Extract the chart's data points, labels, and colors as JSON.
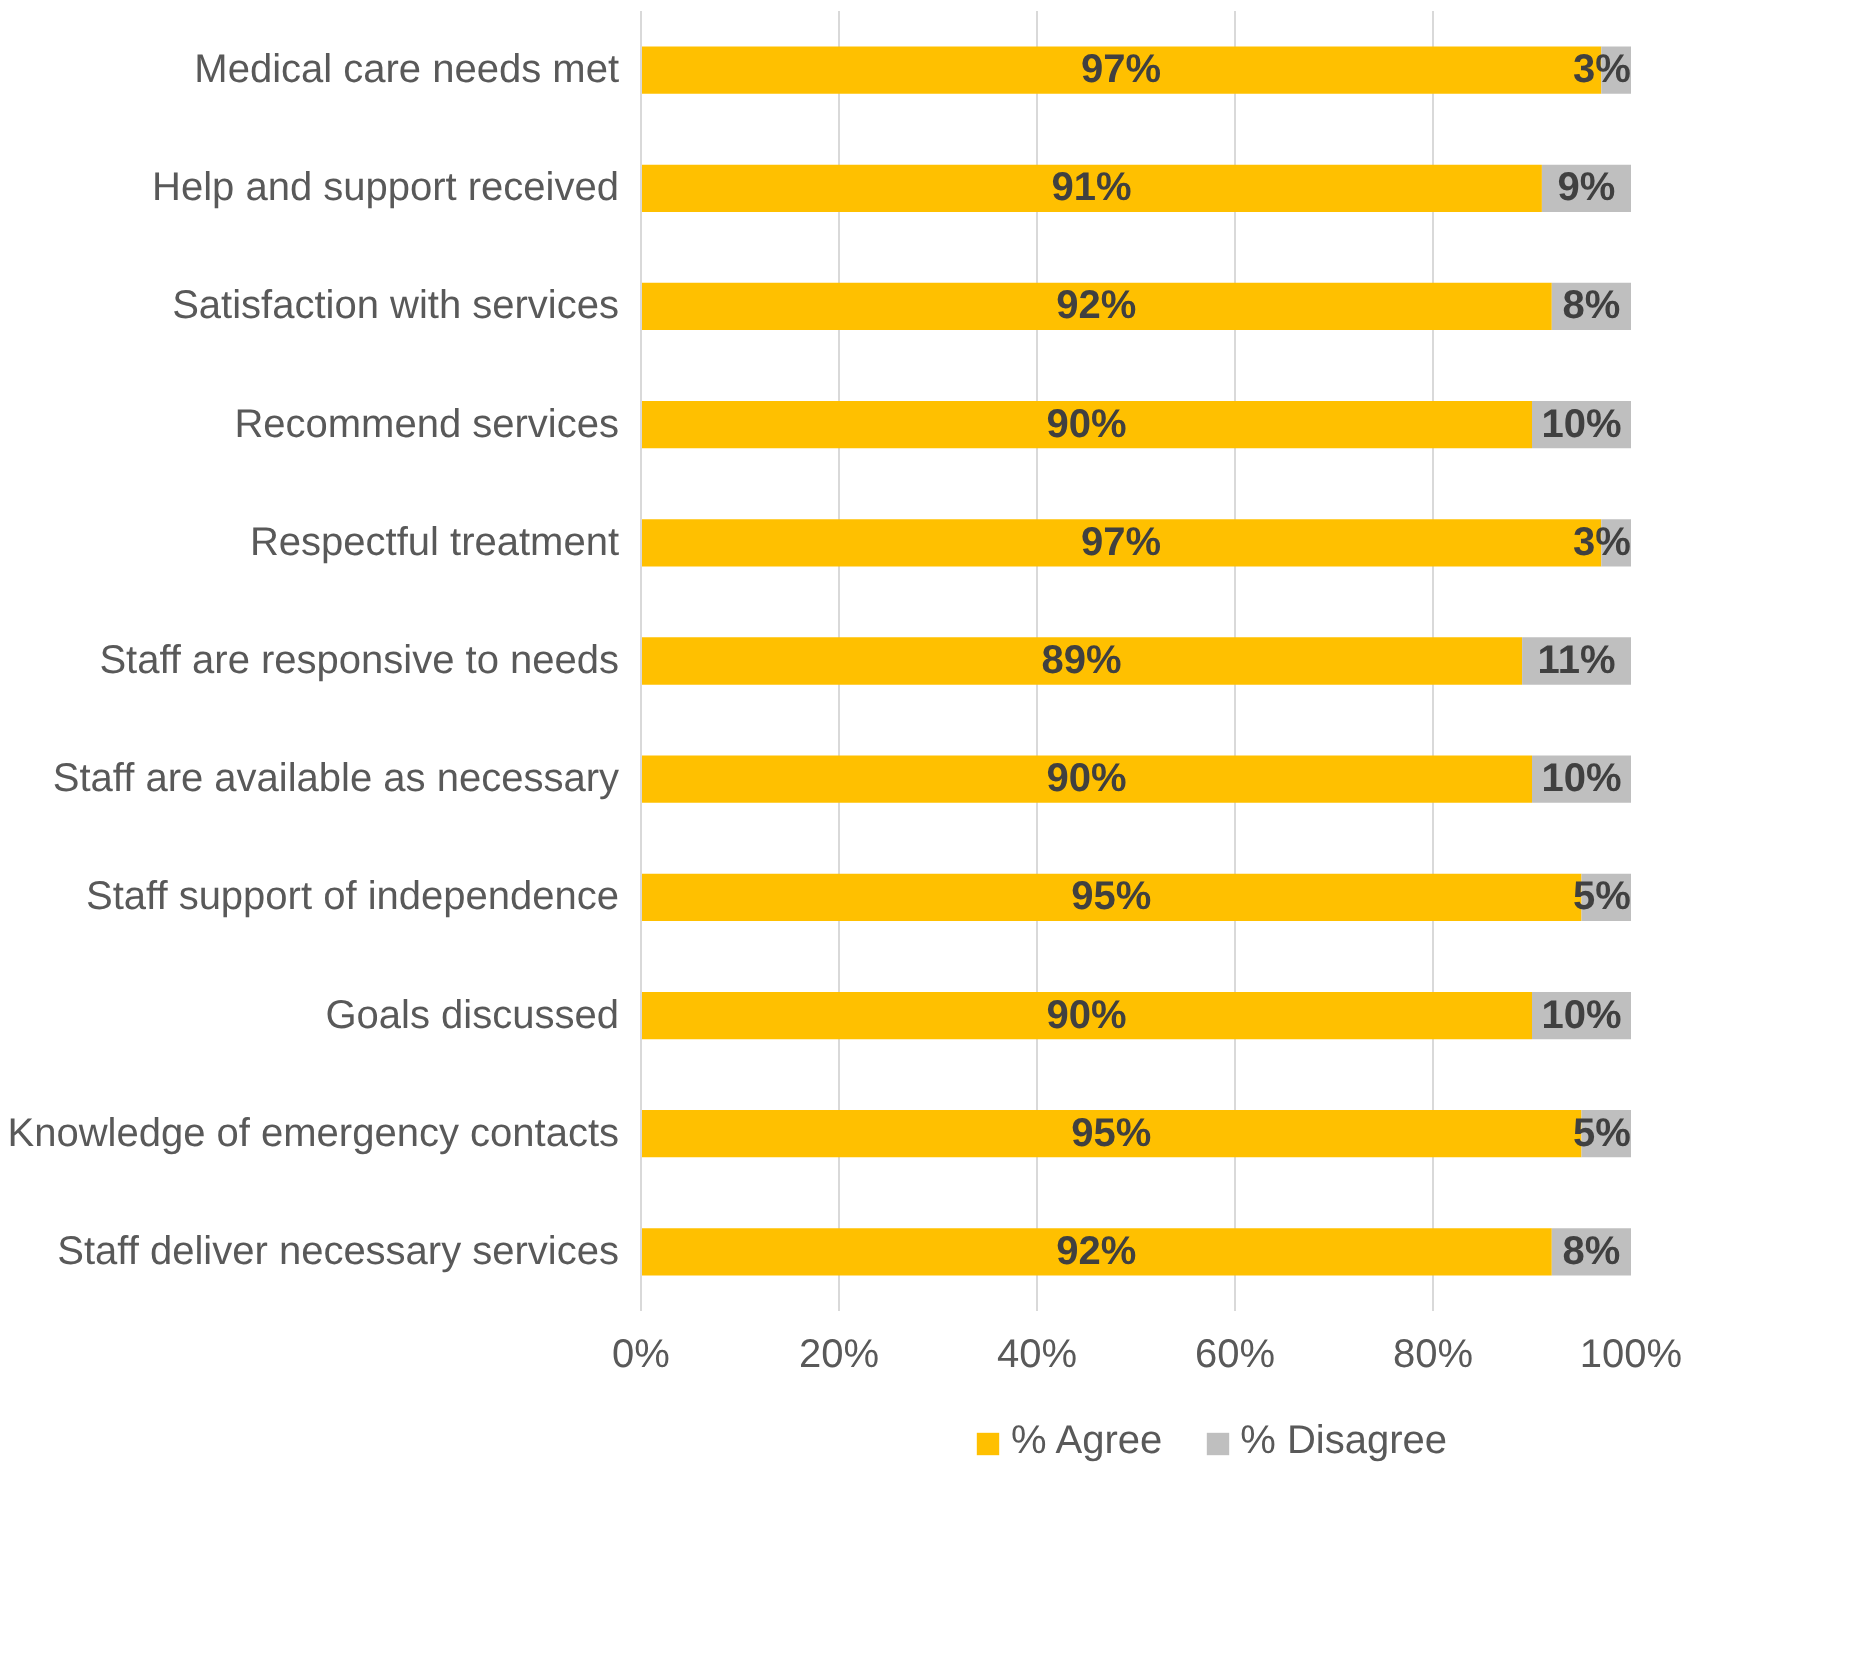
{
  "chart_data": {
    "type": "bar",
    "orientation": "horizontal",
    "stacked": true,
    "categories": [
      "Medical care needs met",
      "Help and support received",
      "Satisfaction with services",
      "Recommend services",
      "Respectful treatment",
      "Staff are responsive to needs",
      "Staff are available as necessary",
      "Staff support of independence",
      "Goals discussed",
      "Knowledge of emergency contacts",
      "Staff deliver necessary services"
    ],
    "series": [
      {
        "name": "% Agree",
        "color": "#ffc000",
        "values": [
          97,
          91,
          92,
          90,
          97,
          89,
          90,
          95,
          90,
          95,
          92
        ],
        "value_labels": [
          "97%",
          "91%",
          "92%",
          "90%",
          "97%",
          "89%",
          "90%",
          "95%",
          "90%",
          "95%",
          "92%"
        ]
      },
      {
        "name": "% Disagree",
        "color": "#bfbfbf",
        "values": [
          3,
          9,
          8,
          10,
          3,
          11,
          10,
          5,
          10,
          5,
          8
        ],
        "value_labels": [
          "3%",
          "9%",
          "8%",
          "10%",
          "3%",
          "11%",
          "10%",
          "5%",
          "10%",
          "5%",
          "8%"
        ]
      }
    ],
    "xlim": [
      0,
      100
    ],
    "xticks": [
      {
        "value": 0,
        "label": "0%"
      },
      {
        "value": 20,
        "label": "20%"
      },
      {
        "value": 40,
        "label": "40%"
      },
      {
        "value": 60,
        "label": "60%"
      },
      {
        "value": 80,
        "label": "80%"
      },
      {
        "value": 100,
        "label": "100%"
      }
    ],
    "grid": "x",
    "legend": "bottom"
  }
}
